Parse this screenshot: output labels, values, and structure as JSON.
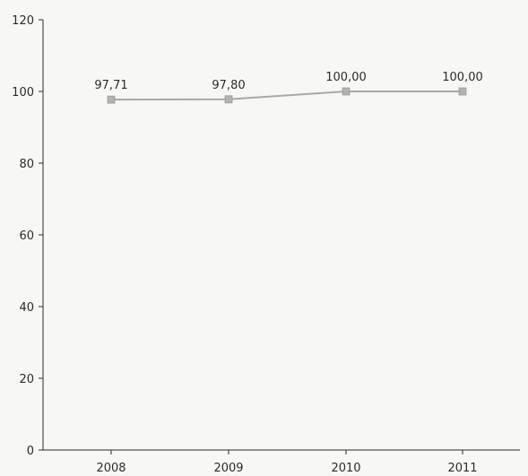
{
  "chart_data": {
    "type": "line",
    "categories": [
      "2008",
      "2009",
      "2010",
      "2011"
    ],
    "series": [
      {
        "values": [
          97.71,
          97.8,
          100.0,
          100.0
        ],
        "labels": [
          "97,71",
          "97,80",
          "100,00",
          "100,00"
        ]
      }
    ],
    "ylim": [
      0,
      120
    ],
    "yticks": [
      0,
      20,
      40,
      60,
      80,
      100,
      120
    ],
    "grid": false,
    "colors": {
      "line": "#a9a9a9",
      "marker": "#b3b3b3",
      "axis": "#2b2b2b"
    }
  }
}
